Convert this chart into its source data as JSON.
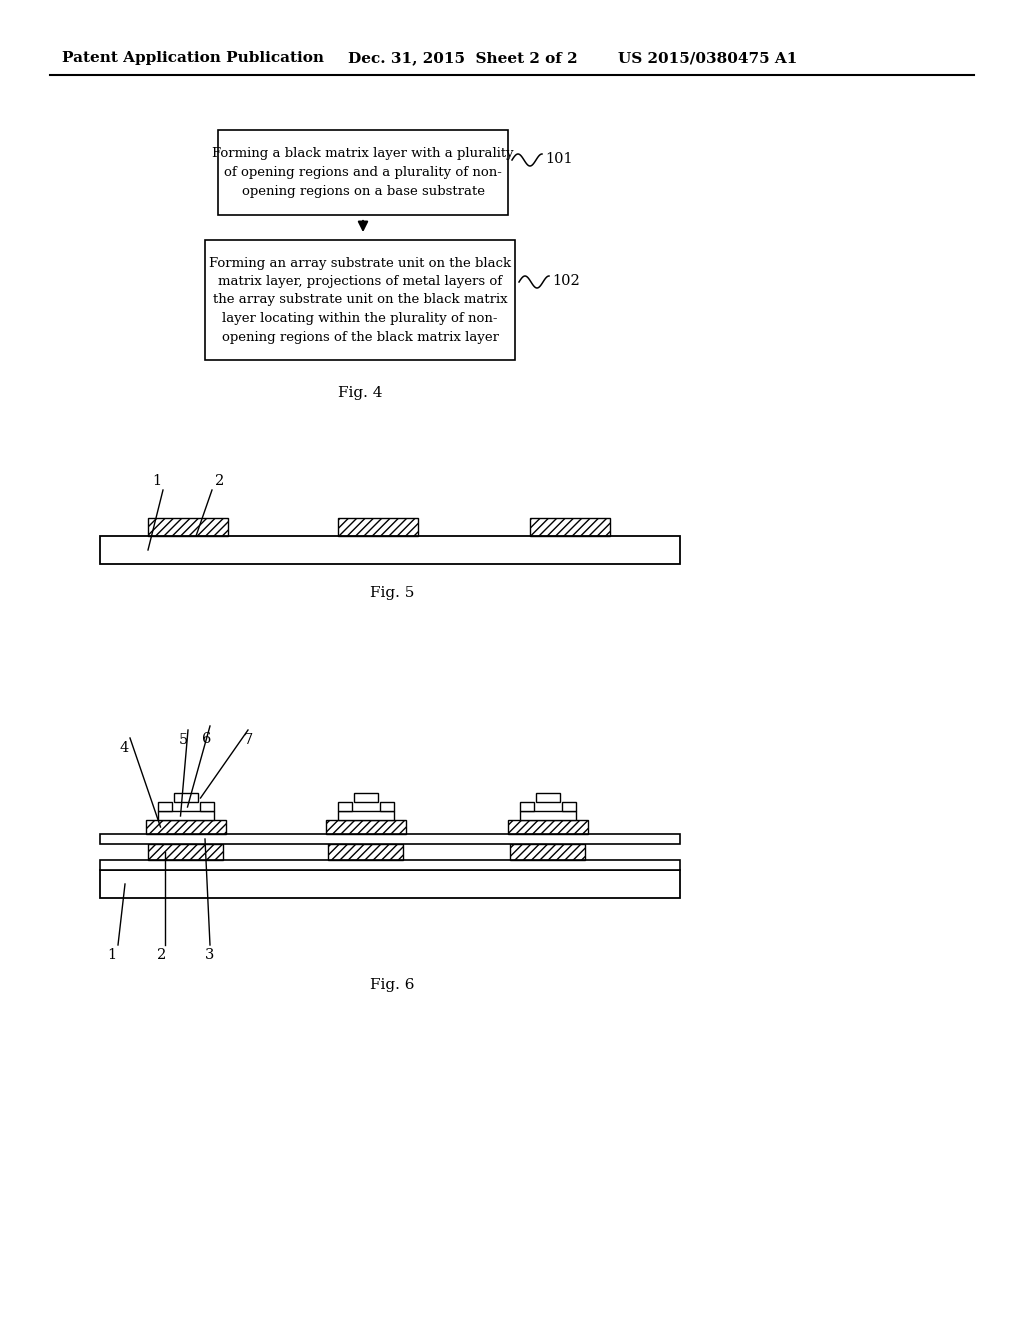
{
  "header_left": "Patent Application Publication",
  "header_mid": "Dec. 31, 2015  Sheet 2 of 2",
  "header_right": "US 2015/0380475 A1",
  "box1_text": "Forming a black matrix layer with a plurality\nof opening regions and a plurality of non-\nopening regions on a base substrate",
  "box1_label": "101",
  "box2_text": "Forming an array substrate unit on the black\nmatrix layer, projections of metal layers of\nthe array substrate unit on the black matrix\nlayer locating within the plurality of non-\nopening regions of the black matrix layer",
  "box2_label": "102",
  "fig4_label": "Fig. 4",
  "fig5_label": "Fig. 5",
  "fig6_label": "Fig. 6",
  "bg_color": "#ffffff"
}
